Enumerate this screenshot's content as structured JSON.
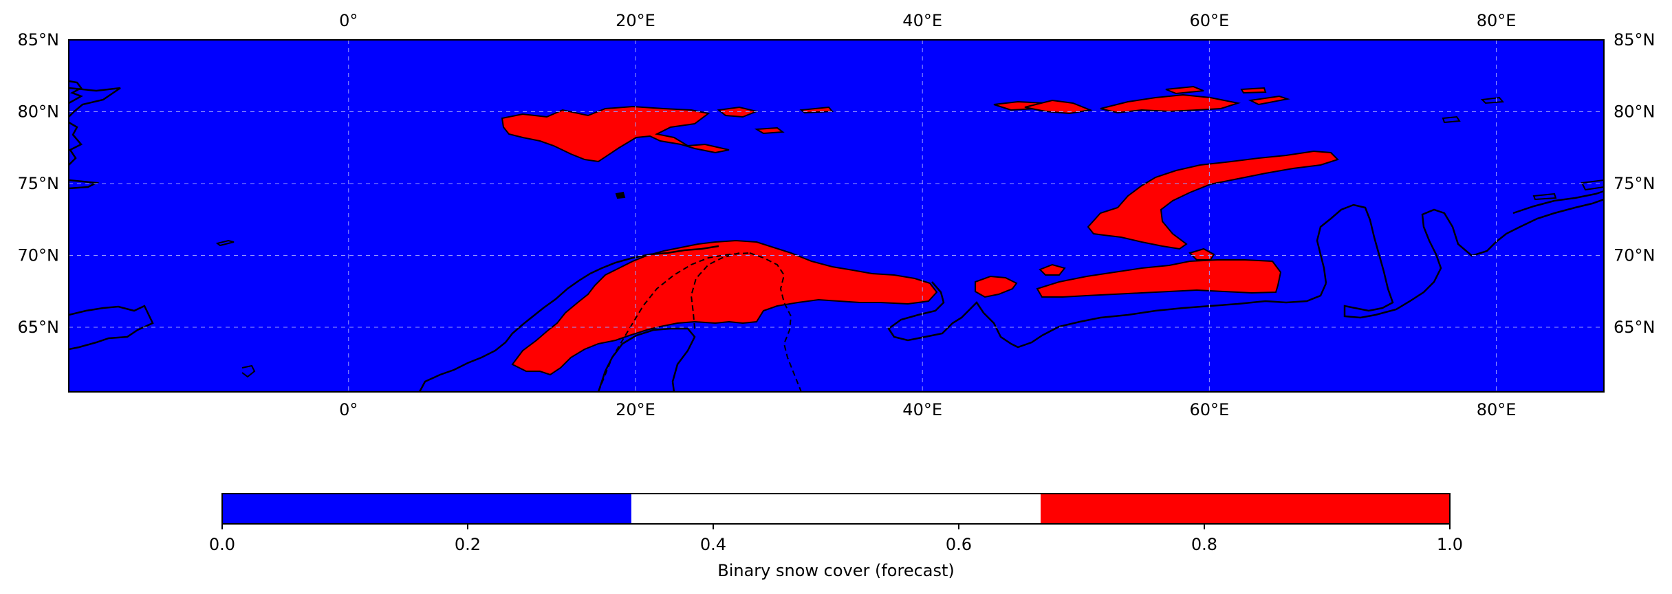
{
  "map": {
    "extent": {
      "lon_min": -19.5,
      "lon_max": 87.5,
      "lat_min": 60.5,
      "lat_max": 85.0
    },
    "lon_ticks": [
      {
        "value": 0,
        "label": "0°"
      },
      {
        "value": 20,
        "label": "20°E"
      },
      {
        "value": 40,
        "label": "40°E"
      },
      {
        "value": 60,
        "label": "60°E"
      },
      {
        "value": 80,
        "label": "80°E"
      }
    ],
    "lat_ticks": [
      {
        "value": 85,
        "label": "85°N"
      },
      {
        "value": 80,
        "label": "80°N"
      },
      {
        "value": 75,
        "label": "75°N"
      },
      {
        "value": 70,
        "label": "70°N"
      },
      {
        "value": 65,
        "label": "65°N"
      }
    ],
    "gridlines": true,
    "background_color": "#0000ff",
    "snow_color": "#ff0000",
    "coastline_color": "#000000"
  },
  "colorbar": {
    "label": "Binary snow cover (forecast)",
    "range": [
      0.0,
      1.0
    ],
    "segments": [
      {
        "from": 0.0,
        "to": 0.3333,
        "color": "#0000ff"
      },
      {
        "from": 0.3333,
        "to": 0.6667,
        "color": "#ffffff"
      },
      {
        "from": 0.6667,
        "to": 1.0,
        "color": "#ff0000"
      }
    ],
    "ticks": [
      {
        "value": 0.0,
        "label": "0.0"
      },
      {
        "value": 0.2,
        "label": "0.2"
      },
      {
        "value": 0.4,
        "label": "0.4"
      },
      {
        "value": 0.6,
        "label": "0.6"
      },
      {
        "value": 0.8,
        "label": "0.8"
      },
      {
        "value": 1.0,
        "label": "1.0"
      }
    ]
  }
}
